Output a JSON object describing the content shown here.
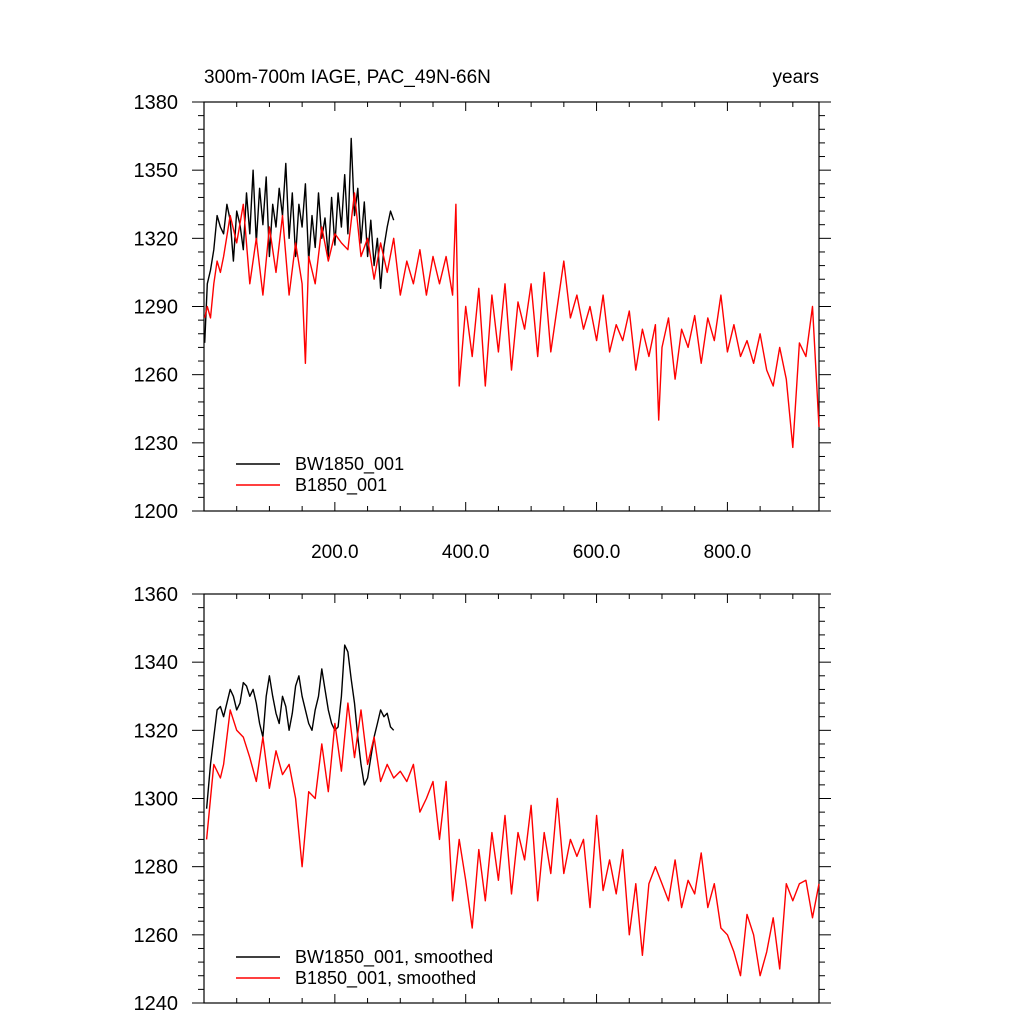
{
  "header": {
    "title_left": "300m-700m IAGE, PAC_49N-66N",
    "title_right": "years"
  },
  "chart_data": [
    {
      "type": "line",
      "xlim": [
        0,
        940
      ],
      "ylim": [
        1200,
        1380
      ],
      "x_ticks": [
        200,
        400,
        600,
        800
      ],
      "x_tick_labels": [
        "200.0",
        "400.0",
        "600.0",
        "800.0"
      ],
      "y_ticks": [
        1200,
        1230,
        1260,
        1290,
        1320,
        1350,
        1380
      ],
      "y_tick_labels": [
        "1200",
        "1230",
        "1260",
        "1290",
        "1320",
        "1350",
        "1380"
      ],
      "grid": false,
      "legend_position": "bottom-left",
      "series": [
        {
          "name": "BW1850_001",
          "color": "#000000",
          "x": [
            1,
            5,
            10,
            15,
            20,
            25,
            30,
            35,
            40,
            45,
            50,
            55,
            60,
            65,
            70,
            75,
            80,
            85,
            90,
            95,
            100,
            105,
            110,
            115,
            120,
            125,
            130,
            135,
            140,
            145,
            150,
            155,
            160,
            165,
            170,
            175,
            180,
            185,
            190,
            195,
            200,
            205,
            210,
            215,
            220,
            225,
            230,
            235,
            240,
            245,
            250,
            255,
            260,
            265,
            270,
            275,
            280,
            285,
            290
          ],
          "values": [
            1274,
            1300,
            1306,
            1315,
            1330,
            1325,
            1322,
            1335,
            1328,
            1310,
            1332,
            1326,
            1315,
            1340,
            1322,
            1350,
            1318,
            1342,
            1326,
            1347,
            1312,
            1335,
            1325,
            1342,
            1330,
            1353,
            1320,
            1340,
            1312,
            1335,
            1325,
            1344,
            1310,
            1330,
            1316,
            1340,
            1320,
            1329,
            1312,
            1338,
            1317,
            1340,
            1325,
            1348,
            1322,
            1364,
            1330,
            1342,
            1318,
            1336,
            1312,
            1328,
            1308,
            1320,
            1298,
            1316,
            1325,
            1332,
            1328
          ]
        },
        {
          "name": "B1850_001",
          "color": "#ff0000",
          "x": [
            1,
            5,
            10,
            15,
            20,
            25,
            30,
            40,
            50,
            60,
            70,
            80,
            90,
            100,
            110,
            120,
            130,
            140,
            150,
            155,
            160,
            170,
            180,
            190,
            200,
            210,
            220,
            230,
            240,
            250,
            260,
            270,
            280,
            290,
            300,
            310,
            320,
            330,
            340,
            350,
            360,
            370,
            380,
            385,
            390,
            400,
            410,
            420,
            430,
            440,
            450,
            460,
            470,
            480,
            490,
            500,
            510,
            520,
            530,
            540,
            550,
            560,
            570,
            580,
            590,
            600,
            610,
            620,
            630,
            640,
            650,
            660,
            670,
            680,
            690,
            695,
            700,
            710,
            720,
            730,
            740,
            750,
            760,
            770,
            780,
            790,
            800,
            810,
            820,
            830,
            840,
            850,
            860,
            870,
            880,
            890,
            900,
            910,
            920,
            930,
            940
          ],
          "values": [
            1285,
            1290,
            1285,
            1300,
            1310,
            1305,
            1312,
            1330,
            1318,
            1335,
            1300,
            1320,
            1295,
            1325,
            1305,
            1330,
            1295,
            1318,
            1300,
            1265,
            1312,
            1300,
            1325,
            1310,
            1322,
            1318,
            1315,
            1340,
            1312,
            1320,
            1302,
            1318,
            1305,
            1320,
            1295,
            1310,
            1300,
            1315,
            1295,
            1312,
            1300,
            1312,
            1295,
            1335,
            1255,
            1290,
            1268,
            1298,
            1255,
            1295,
            1270,
            1300,
            1262,
            1292,
            1280,
            1300,
            1268,
            1305,
            1270,
            1290,
            1310,
            1285,
            1295,
            1280,
            1290,
            1275,
            1295,
            1270,
            1282,
            1275,
            1288,
            1262,
            1280,
            1268,
            1282,
            1240,
            1272,
            1285,
            1258,
            1280,
            1272,
            1286,
            1265,
            1285,
            1275,
            1295,
            1270,
            1282,
            1268,
            1275,
            1265,
            1278,
            1262,
            1255,
            1272,
            1258,
            1228,
            1274,
            1268,
            1290,
            1237
          ]
        }
      ]
    },
    {
      "type": "line",
      "xlim": [
        0,
        940
      ],
      "ylim": [
        1240,
        1360
      ],
      "x_ticks": [
        200,
        400,
        600,
        800
      ],
      "x_tick_labels": [],
      "y_ticks": [
        1240,
        1260,
        1280,
        1300,
        1320,
        1340,
        1360
      ],
      "y_tick_labels": [
        "1240",
        "1260",
        "1280",
        "1300",
        "1320",
        "1340",
        "1360"
      ],
      "grid": false,
      "legend_position": "bottom-left",
      "series": [
        {
          "name": "BW1850_001, smoothed",
          "color": "#000000",
          "x": [
            4,
            10,
            15,
            20,
            25,
            30,
            35,
            40,
            45,
            50,
            55,
            60,
            65,
            70,
            75,
            80,
            85,
            90,
            95,
            100,
            105,
            110,
            115,
            120,
            125,
            130,
            135,
            140,
            145,
            150,
            155,
            160,
            165,
            170,
            175,
            180,
            185,
            190,
            195,
            200,
            205,
            210,
            215,
            220,
            225,
            230,
            235,
            240,
            245,
            250,
            255,
            260,
            265,
            270,
            275,
            280,
            285,
            290
          ],
          "values": [
            1297,
            1310,
            1318,
            1326,
            1327,
            1324,
            1328,
            1332,
            1330,
            1326,
            1328,
            1334,
            1333,
            1330,
            1332,
            1328,
            1322,
            1318,
            1330,
            1336,
            1330,
            1325,
            1322,
            1330,
            1327,
            1320,
            1325,
            1333,
            1336,
            1330,
            1326,
            1322,
            1320,
            1326,
            1330,
            1338,
            1332,
            1326,
            1322,
            1320,
            1321,
            1330,
            1345,
            1343,
            1335,
            1328,
            1318,
            1310,
            1304,
            1306,
            1312,
            1318,
            1322,
            1326,
            1324,
            1325,
            1321,
            1320
          ]
        },
        {
          "name": "B1850_001, smoothed",
          "color": "#ff0000",
          "x": [
            4,
            10,
            15,
            20,
            25,
            30,
            40,
            50,
            60,
            70,
            80,
            90,
            100,
            110,
            120,
            130,
            140,
            150,
            160,
            170,
            180,
            190,
            200,
            210,
            220,
            230,
            240,
            250,
            260,
            270,
            280,
            290,
            300,
            310,
            320,
            330,
            340,
            350,
            360,
            370,
            380,
            390,
            400,
            410,
            420,
            430,
            440,
            450,
            460,
            470,
            480,
            490,
            500,
            510,
            520,
            530,
            540,
            550,
            560,
            570,
            580,
            590,
            600,
            610,
            620,
            630,
            640,
            650,
            660,
            670,
            680,
            690,
            700,
            710,
            720,
            730,
            740,
            750,
            760,
            770,
            780,
            790,
            800,
            810,
            820,
            830,
            840,
            850,
            860,
            870,
            880,
            890,
            900,
            910,
            920,
            930,
            940
          ],
          "values": [
            1288,
            1300,
            1310,
            1308,
            1306,
            1310,
            1326,
            1320,
            1318,
            1312,
            1305,
            1318,
            1303,
            1314,
            1307,
            1310,
            1300,
            1280,
            1302,
            1300,
            1316,
            1302,
            1322,
            1308,
            1328,
            1312,
            1326,
            1310,
            1318,
            1305,
            1310,
            1306,
            1308,
            1305,
            1310,
            1296,
            1300,
            1305,
            1288,
            1305,
            1270,
            1288,
            1276,
            1262,
            1285,
            1270,
            1290,
            1276,
            1295,
            1272,
            1290,
            1282,
            1298,
            1270,
            1290,
            1278,
            1300,
            1278,
            1288,
            1283,
            1288,
            1268,
            1295,
            1273,
            1282,
            1272,
            1285,
            1260,
            1275,
            1254,
            1275,
            1280,
            1275,
            1270,
            1282,
            1268,
            1276,
            1272,
            1284,
            1268,
            1275,
            1262,
            1260,
            1255,
            1248,
            1266,
            1260,
            1248,
            1255,
            1265,
            1250,
            1275,
            1270,
            1275,
            1276,
            1265,
            1275
          ]
        }
      ]
    }
  ]
}
